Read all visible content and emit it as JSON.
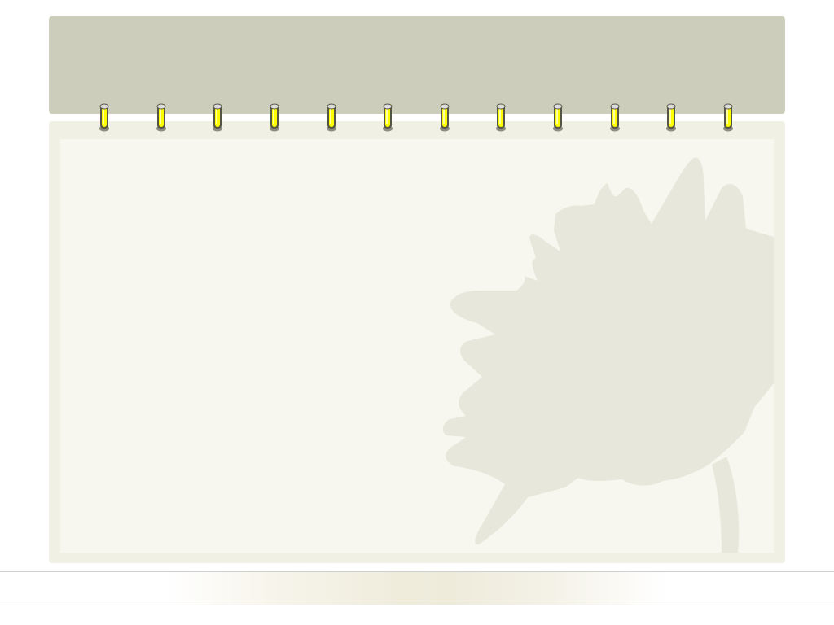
{
  "theme": {
    "header_color": "#cccdbb",
    "page_border_color": "#f0f0e5",
    "paper_color": "#f8f7ef",
    "silhouette_color": "#e8e7dc",
    "ring_color": "#ffff00",
    "ring_outline_color": "#555544",
    "footer_band_color": "#efecdc"
  },
  "rings": {
    "count": 12,
    "icon": "binder-ring-icon"
  },
  "decoration": {
    "icon": "sunflower-silhouette-icon"
  }
}
